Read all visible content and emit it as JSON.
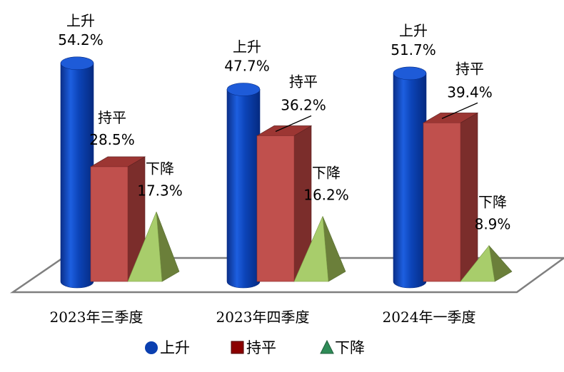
{
  "chart_data": {
    "type": "bar",
    "title": "",
    "xlabel": "",
    "ylabel": "",
    "ylim": [
      0,
      60
    ],
    "grid": false,
    "legend_position": "bottom",
    "categories": [
      "2023年三季度",
      "2023年四季度",
      "2024年一季度"
    ],
    "series": [
      {
        "name": "上升",
        "shape": "cylinder",
        "color": "#0a3fb0",
        "values": [
          54.2,
          47.7,
          51.7
        ],
        "labels": [
          "54.2%",
          "47.7%",
          "51.7%"
        ]
      },
      {
        "name": "持平",
        "shape": "box",
        "color": "#c0504d",
        "values": [
          28.5,
          36.2,
          39.4
        ],
        "labels": [
          "28.5%",
          "36.2%",
          "39.4%"
        ]
      },
      {
        "name": "下降",
        "shape": "pyramid",
        "color": "#9bbb59",
        "values": [
          17.3,
          16.2,
          8.9
        ],
        "labels": [
          "17.3%",
          "16.2%",
          "8.9%"
        ]
      }
    ]
  }
}
